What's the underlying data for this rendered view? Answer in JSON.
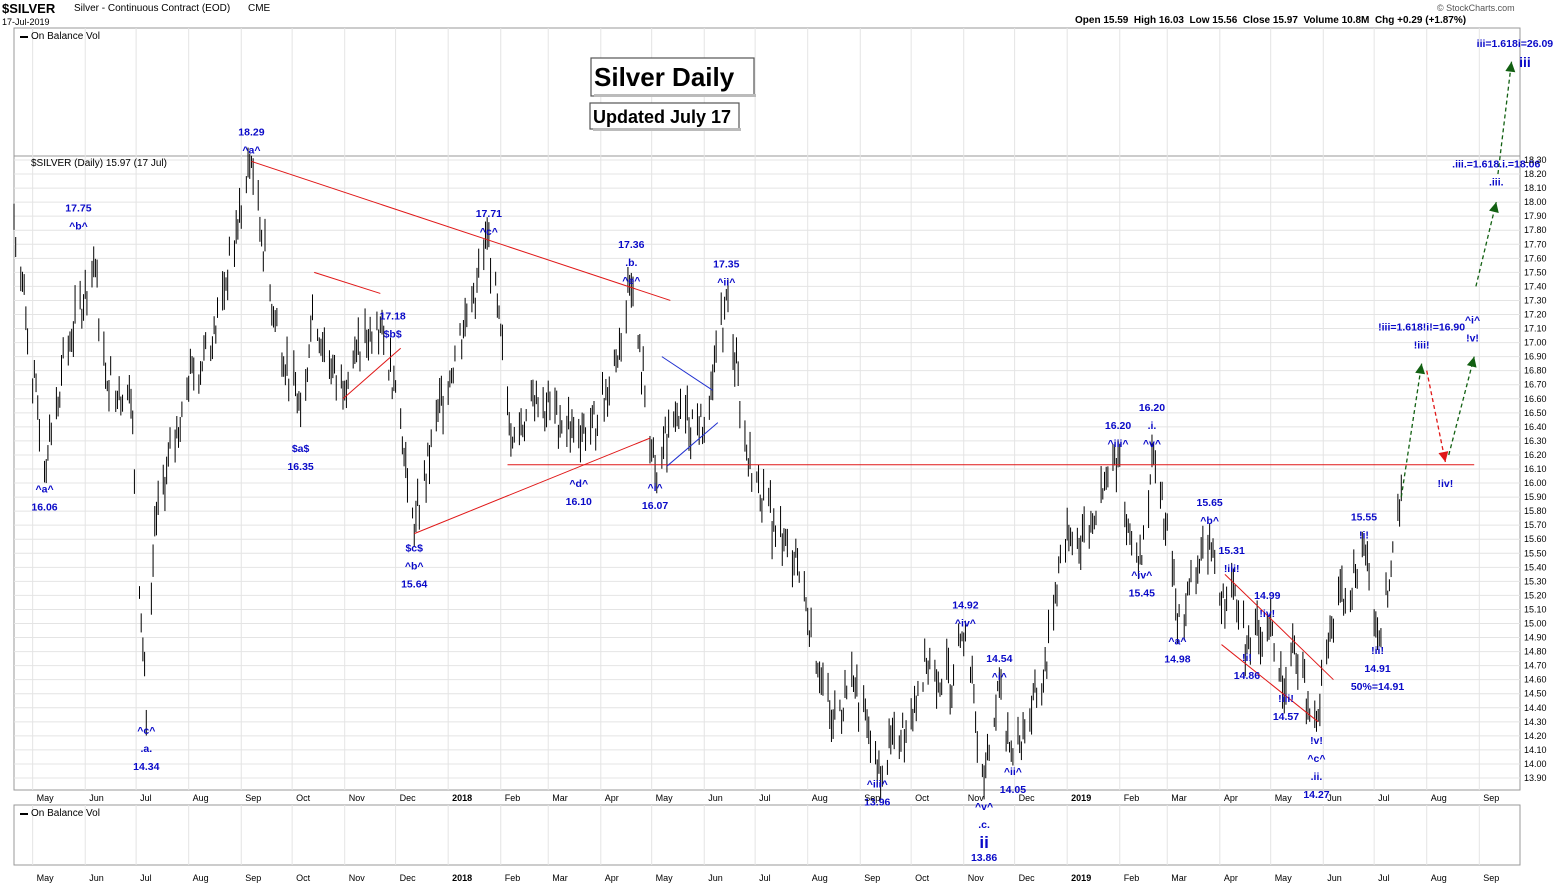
{
  "header": {
    "symbol": "$SILVER",
    "name": "Silver - Continuous Contract (EOD)",
    "exchange": "CME",
    "date": "17-Jul-2019",
    "ohlc": "Open 15.59  High 16.03  Low 15.56  Close 15.97  Volume 10.8M  Chg +0.29 (+1.87%)",
    "brand": "© StockCharts.com"
  },
  "panels": {
    "top_label": "On Balance Vol",
    "main_label": "$SILVER (Daily) 15.97 (17 Jul)",
    "bottom_label": "On Balance Vol"
  },
  "titles": {
    "main": "Silver Daily",
    "updated": "Updated July 17"
  },
  "colors": {
    "price_bar": "#000000",
    "trendline": "#e01818",
    "wave_label": "#0a0ac8",
    "projection_up": "#126012",
    "projection_down": "#e01818",
    "wedge_line": "#2030d0"
  },
  "chart_data": {
    "type": "bar",
    "title": "Silver Daily",
    "subtitle": "Updated July 17",
    "price_axis": {
      "min": 13.9,
      "max": 18.3,
      "step": 0.1,
      "side": "right",
      "ticks": [
        "18.30",
        "18.20",
        "18.10",
        "18.00",
        "17.90",
        "17.80",
        "17.70",
        "17.60",
        "17.50",
        "17.40",
        "17.30",
        "17.20",
        "17.10",
        "17.00",
        "16.90",
        "16.80",
        "16.70",
        "16.60",
        "16.50",
        "16.40",
        "16.30",
        "16.20",
        "16.10",
        "16.00",
        "15.90",
        "15.80",
        "15.70",
        "15.60",
        "15.50",
        "15.40",
        "15.30",
        "15.20",
        "15.10",
        "15.00",
        "14.90",
        "14.80",
        "14.70",
        "14.60",
        "14.50",
        "14.40",
        "14.30",
        "14.20",
        "14.10",
        "14.00",
        "13.90"
      ]
    },
    "time_axis": {
      "start": "2017-04-20",
      "end": "2019-09-25",
      "labels": [
        {
          "date": "2017-05-01",
          "text": "May"
        },
        {
          "date": "2017-06-01",
          "text": "Jun"
        },
        {
          "date": "2017-07-01",
          "text": "Jul"
        },
        {
          "date": "2017-08-01",
          "text": "Aug"
        },
        {
          "date": "2017-09-01",
          "text": "Sep"
        },
        {
          "date": "2017-10-01",
          "text": "Oct"
        },
        {
          "date": "2017-11-01",
          "text": "Nov"
        },
        {
          "date": "2017-12-01",
          "text": "Dec"
        },
        {
          "date": "2018-01-01",
          "text": "2018"
        },
        {
          "date": "2018-02-01",
          "text": "Feb"
        },
        {
          "date": "2018-03-01",
          "text": "Mar"
        },
        {
          "date": "2018-04-01",
          "text": "Apr"
        },
        {
          "date": "2018-05-01",
          "text": "May"
        },
        {
          "date": "2018-06-01",
          "text": "Jun"
        },
        {
          "date": "2018-07-01",
          "text": "Jul"
        },
        {
          "date": "2018-08-01",
          "text": "Aug"
        },
        {
          "date": "2018-09-01",
          "text": "Sep"
        },
        {
          "date": "2018-10-01",
          "text": "Oct"
        },
        {
          "date": "2018-11-01",
          "text": "Nov"
        },
        {
          "date": "2018-12-01",
          "text": "Dec"
        },
        {
          "date": "2019-01-01",
          "text": "2019"
        },
        {
          "date": "2019-02-01",
          "text": "Feb"
        },
        {
          "date": "2019-03-01",
          "text": "Mar"
        },
        {
          "date": "2019-04-01",
          "text": "Apr"
        },
        {
          "date": "2019-05-01",
          "text": "May"
        },
        {
          "date": "2019-06-01",
          "text": "Jun"
        },
        {
          "date": "2019-07-01",
          "text": "Jul"
        },
        {
          "date": "2019-08-01",
          "text": "Aug"
        },
        {
          "date": "2019-09-01",
          "text": "Sep"
        }
      ]
    },
    "grid": true,
    "price_path": [
      [
        "2017-04-20",
        17.9
      ],
      [
        "2017-05-08",
        16.1
      ],
      [
        "2017-05-18",
        16.8
      ],
      [
        "2017-06-06",
        17.6
      ],
      [
        "2017-06-13",
        16.8
      ],
      [
        "2017-06-28",
        16.6
      ],
      [
        "2017-07-07",
        14.34
      ],
      [
        "2017-07-12",
        15.7
      ],
      [
        "2017-07-31",
        16.7
      ],
      [
        "2017-08-15",
        17.0
      ],
      [
        "2017-09-07",
        18.29
      ],
      [
        "2017-09-20",
        17.2
      ],
      [
        "2017-10-06",
        16.5
      ],
      [
        "2017-10-13",
        17.2
      ],
      [
        "2017-10-28",
        16.7
      ],
      [
        "2017-11-08",
        16.9
      ],
      [
        "2017-11-20",
        17.18
      ],
      [
        "2017-12-01",
        16.7
      ],
      [
        "2017-12-12",
        15.64
      ],
      [
        "2017-12-26",
        16.5
      ],
      [
        "2018-01-12",
        17.2
      ],
      [
        "2018-01-25",
        17.71
      ],
      [
        "2018-02-08",
        16.3
      ],
      [
        "2018-02-22",
        16.6
      ],
      [
        "2018-03-15",
        16.4
      ],
      [
        "2018-03-30",
        16.4
      ],
      [
        "2018-04-19",
        17.36
      ],
      [
        "2018-05-03",
        16.07
      ],
      [
        "2018-05-15",
        16.5
      ],
      [
        "2018-06-01",
        16.4
      ],
      [
        "2018-06-14",
        17.35
      ],
      [
        "2018-06-26",
        16.2
      ],
      [
        "2018-07-12",
        15.7
      ],
      [
        "2018-07-26",
        15.4
      ],
      [
        "2018-08-15",
        14.3
      ],
      [
        "2018-08-28",
        14.6
      ],
      [
        "2018-09-11",
        13.96
      ],
      [
        "2018-09-25",
        14.2
      ],
      [
        "2018-10-10",
        14.7
      ],
      [
        "2018-10-26",
        14.6
      ],
      [
        "2018-11-02",
        14.92
      ],
      [
        "2018-11-13",
        13.86
      ],
      [
        "2018-11-22",
        14.54
      ],
      [
        "2018-11-30",
        14.05
      ],
      [
        "2018-12-18",
        14.6
      ],
      [
        "2018-12-28",
        15.5
      ],
      [
        "2019-01-15",
        15.7
      ],
      [
        "2019-01-31",
        16.2
      ],
      [
        "2019-02-06",
        15.7
      ],
      [
        "2019-02-14",
        15.45
      ],
      [
        "2019-02-20",
        16.2
      ],
      [
        "2019-03-04",
        15.4
      ],
      [
        "2019-03-07",
        14.98
      ],
      [
        "2019-03-20",
        15.4
      ],
      [
        "2019-03-26",
        15.65
      ],
      [
        "2019-04-02",
        15.1
      ],
      [
        "2019-04-08",
        15.31
      ],
      [
        "2019-04-17",
        14.86
      ],
      [
        "2019-04-29",
        14.99
      ],
      [
        "2019-05-10",
        14.57
      ],
      [
        "2019-05-15",
        14.85
      ],
      [
        "2019-05-28",
        14.27
      ],
      [
        "2019-06-06",
        15.0
      ],
      [
        "2019-06-14",
        15.2
      ],
      [
        "2019-06-25",
        15.55
      ],
      [
        "2019-07-03",
        14.91
      ],
      [
        "2019-07-09",
        15.2
      ],
      [
        "2019-07-17",
        15.97
      ]
    ],
    "trendlines": [
      {
        "kind": "red",
        "from": [
          "2017-09-07",
          18.29
        ],
        "to": [
          "2018-05-12",
          17.3
        ]
      },
      {
        "kind": "red",
        "from": [
          "2018-02-05",
          16.13
        ],
        "to": [
          "2019-08-29",
          16.13
        ]
      },
      {
        "kind": "red",
        "from": [
          "2017-12-12",
          15.64
        ],
        "to": [
          "2018-04-30",
          16.32
        ]
      },
      {
        "kind": "red",
        "from": [
          "2017-10-14",
          17.5
        ],
        "to": [
          "2017-11-22",
          17.35
        ]
      },
      {
        "kind": "red",
        "from": [
          "2017-10-31",
          16.6
        ],
        "to": [
          "2017-12-04",
          16.96
        ]
      },
      {
        "kind": "blue",
        "from": [
          "2018-05-07",
          16.9
        ],
        "to": [
          "2018-06-06",
          16.66
        ]
      },
      {
        "kind": "blue",
        "from": [
          "2018-05-10",
          16.12
        ],
        "to": [
          "2018-06-09",
          16.43
        ]
      },
      {
        "kind": "red",
        "from": [
          "2019-04-04",
          15.35
        ],
        "to": [
          "2019-06-07",
          14.6
        ]
      },
      {
        "kind": "red",
        "from": [
          "2019-04-02",
          14.85
        ],
        "to": [
          "2019-05-29",
          14.3
        ]
      }
    ],
    "projections": [
      {
        "color": "green",
        "from": [
          "2019-07-17",
          15.9
        ],
        "to": [
          "2019-07-29",
          16.85
        ]
      },
      {
        "color": "red",
        "from": [
          "2019-08-01",
          16.8
        ],
        "to": [
          "2019-08-12",
          16.15
        ]
      },
      {
        "color": "green",
        "from": [
          "2019-08-14",
          16.2
        ],
        "to": [
          "2019-08-29",
          16.9
        ]
      },
      {
        "color": "green",
        "from": [
          "2019-08-30",
          17.4
        ],
        "to": [
          "2019-09-11",
          18.0
        ]
      },
      {
        "color": "green",
        "from": [
          "2019-09-12",
          18.2
        ],
        "to": [
          "2019-09-20",
          19.0
        ]
      }
    ],
    "annotations": [
      {
        "lines": [
          "17.75",
          "^b^"
        ],
        "date": "2017-05-28",
        "price": 17.75,
        "pos": "above"
      },
      {
        "lines": [
          "^a^",
          "16.06"
        ],
        "date": "2017-05-08",
        "price": 16.06,
        "pos": "below"
      },
      {
        "lines": [
          "^c^",
          ".a.",
          "14.34"
        ],
        "date": "2017-07-07",
        "price": 14.34,
        "pos": "below"
      },
      {
        "lines": [
          "18.29",
          "^a^"
        ],
        "date": "2017-09-07",
        "price": 18.29,
        "pos": "above"
      },
      {
        "lines": [
          "$a$",
          "16.35"
        ],
        "date": "2017-10-06",
        "price": 16.35,
        "pos": "below"
      },
      {
        "lines": [
          "17.18",
          "$b$"
        ],
        "date": "2017-11-21",
        "price": 17.18,
        "pos": "right"
      },
      {
        "lines": [
          "$c$",
          "^b^",
          "15.64"
        ],
        "date": "2017-12-12",
        "price": 15.64,
        "pos": "below"
      },
      {
        "lines": [
          "17.71",
          "^c^"
        ],
        "date": "2018-01-25",
        "price": 17.71,
        "pos": "above"
      },
      {
        "lines": [
          "^d^",
          "16.10"
        ],
        "date": "2018-03-19",
        "price": 16.1,
        "pos": "below"
      },
      {
        "lines": [
          "17.36",
          ".b.",
          "^e^"
        ],
        "date": "2018-04-19",
        "price": 17.36,
        "pos": "above"
      },
      {
        "lines": [
          "^i^",
          "16.07"
        ],
        "date": "2018-05-03",
        "price": 16.07,
        "pos": "below"
      },
      {
        "lines": [
          "17.35",
          "^ii^"
        ],
        "date": "2018-06-14",
        "price": 17.35,
        "pos": "above"
      },
      {
        "lines": [
          "^iii^",
          "13.96"
        ],
        "date": "2018-09-11",
        "price": 13.96,
        "pos": "below"
      },
      {
        "lines": [
          "14.92",
          "^iv^"
        ],
        "date": "2018-11-02",
        "price": 14.92,
        "pos": "above"
      },
      {
        "lines": [
          "14.54",
          "^i^"
        ],
        "date": "2018-11-22",
        "price": 14.54,
        "pos": "above"
      },
      {
        "lines": [
          "^ii^",
          "14.05"
        ],
        "date": "2018-11-30",
        "price": 14.05,
        "pos": "below"
      },
      {
        "lines": [
          "16.20",
          "^iii^"
        ],
        "date": "2019-01-31",
        "price": 16.2,
        "pos": "above"
      },
      {
        "lines": [
          "16.20",
          ".i.",
          "^v^"
        ],
        "date": "2019-02-20",
        "price": 16.2,
        "pos": "above"
      },
      {
        "lines": [
          "^iv^",
          "15.45"
        ],
        "date": "2019-02-14",
        "price": 15.45,
        "pos": "below"
      },
      {
        "lines": [
          "^a^",
          "14.98"
        ],
        "date": "2019-03-07",
        "price": 14.98,
        "pos": "below"
      },
      {
        "lines": [
          "15.65",
          "^b^"
        ],
        "date": "2019-03-26",
        "price": 15.65,
        "pos": "above"
      },
      {
        "lines": [
          "15.31",
          "!iii!"
        ],
        "date": "2019-04-08",
        "price": 15.31,
        "pos": "above"
      },
      {
        "lines": [
          "!i!",
          "14.86"
        ],
        "date": "2019-04-17",
        "price": 14.86,
        "pos": "below"
      },
      {
        "lines": [
          "14.99",
          "!iv!"
        ],
        "date": "2019-04-29",
        "price": 14.99,
        "pos": "above"
      },
      {
        "lines": [
          "!iii!",
          "14.57"
        ],
        "date": "2019-05-10",
        "price": 14.57,
        "pos": "below"
      },
      {
        "lines": [
          "!v!",
          "^c^",
          ".ii.",
          "14.27"
        ],
        "date": "2019-05-28",
        "price": 14.27,
        "pos": "below"
      },
      {
        "lines": [
          "15.55",
          "!i!"
        ],
        "date": "2019-06-25",
        "price": 15.55,
        "pos": "above"
      },
      {
        "lines": [
          "!ii!",
          "14.91",
          "50%=14.91"
        ],
        "date": "2019-07-03",
        "price": 14.91,
        "pos": "below"
      },
      {
        "lines": [
          "!iii=1.618!i!=16.90",
          "!iii!"
        ],
        "date": "2019-07-29",
        "price": 16.9,
        "pos": "above"
      },
      {
        "lines": [
          "!iv!"
        ],
        "date": "2019-08-12",
        "price": 16.1,
        "pos": "below"
      },
      {
        "lines": [
          "^i^",
          "!v!"
        ],
        "date": "2019-08-28",
        "price": 16.95,
        "pos": "above"
      },
      {
        "lines": [
          ".iii.=1.618.i.=18.06",
          ".iii."
        ],
        "date": "2019-09-11",
        "price": 18.06,
        "pos": "above"
      }
    ],
    "upper_labels": [
      {
        "lines": [
          "iii=1.618i=26.09",
          "iii"
        ],
        "date": "2019-09-22"
      }
    ],
    "lower_labels": [
      {
        "lines": [
          "^v^",
          ".c.",
          "ii",
          "13.86"
        ],
        "date": "2018-11-13"
      }
    ]
  }
}
